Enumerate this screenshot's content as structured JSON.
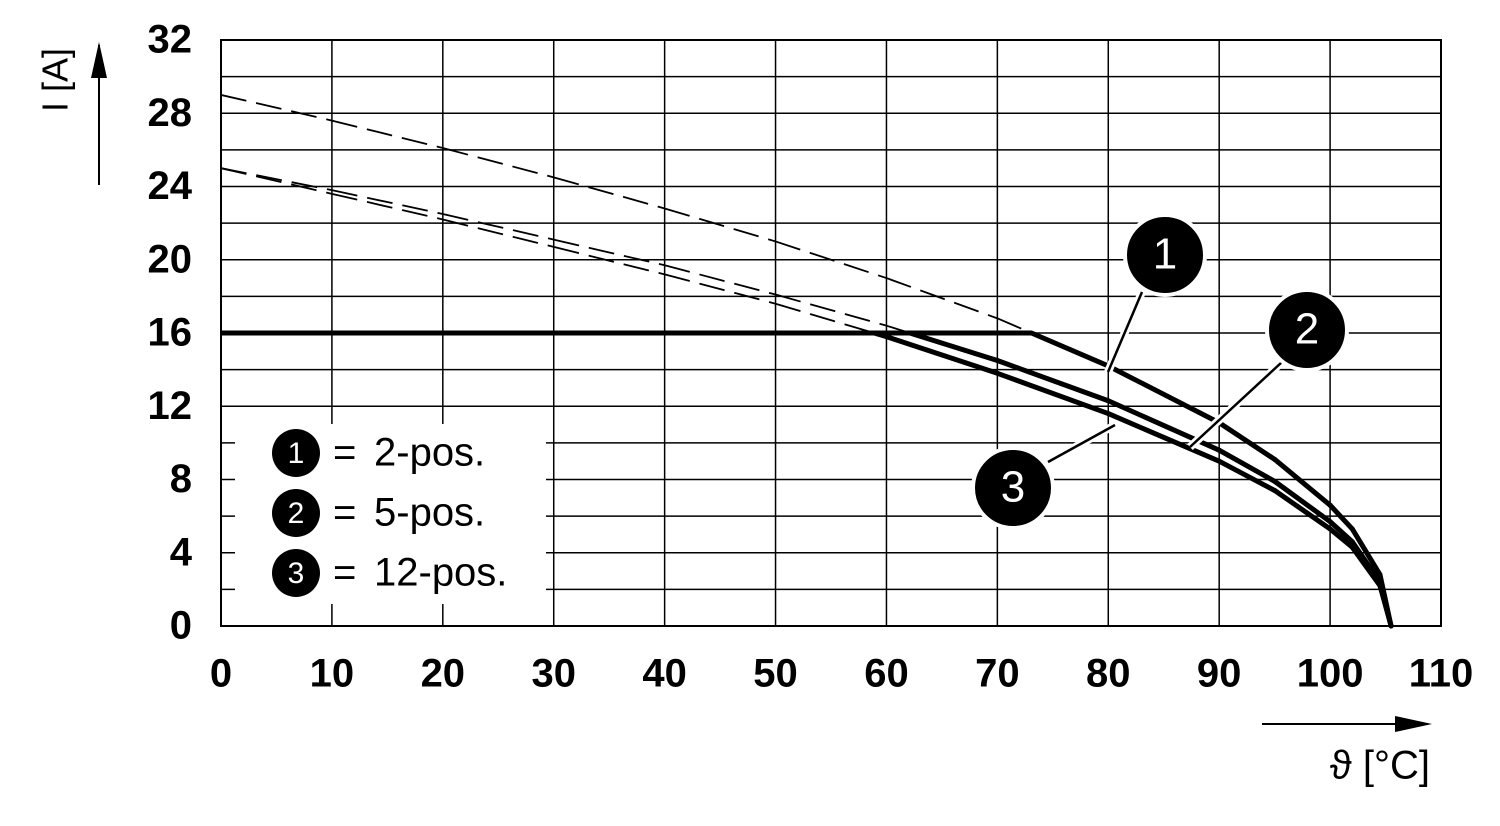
{
  "chart_data": {
    "type": "line",
    "x_label": "ϑ [°C]",
    "y_label": "I [A]",
    "x": [
      0,
      10,
      20,
      30,
      40,
      50,
      60,
      70,
      80,
      90,
      95,
      100,
      102,
      104.5,
      105.5
    ],
    "series": [
      {
        "name": "2-pos.",
        "marker": "1",
        "color": "#000000",
        "values": [
          29,
          27.6,
          26.1,
          24.5,
          22.8,
          21.0,
          19.0,
          16.8,
          14.2,
          11.1,
          9.1,
          6.6,
          5.3,
          2.8,
          0
        ]
      },
      {
        "name": "5-pos.",
        "marker": "2",
        "color": "#000000",
        "values": [
          25,
          23.8,
          22.5,
          21.1,
          19.7,
          18.1,
          16.4,
          14.5,
          12.3,
          9.6,
          7.9,
          5.7,
          4.6,
          2.4,
          0
        ]
      },
      {
        "name": "12-pos.",
        "marker": "3",
        "color": "#000000",
        "values": [
          25,
          23.6,
          22.2,
          20.7,
          19.2,
          17.6,
          15.8,
          13.8,
          11.6,
          9.0,
          7.4,
          5.3,
          4.3,
          2.2,
          0
        ]
      }
    ],
    "rated_current": 16,
    "legend_separator": "=",
    "xlim": [
      0,
      110
    ],
    "ylim": [
      0,
      32
    ],
    "xticks": [
      0,
      10,
      20,
      30,
      40,
      50,
      60,
      70,
      80,
      90,
      100,
      110
    ],
    "yticks": [
      0,
      4,
      8,
      12,
      16,
      20,
      24,
      28,
      32
    ],
    "minor_yticks": [
      2,
      6,
      10,
      14,
      18,
      22,
      26,
      30
    ],
    "grid": true
  }
}
